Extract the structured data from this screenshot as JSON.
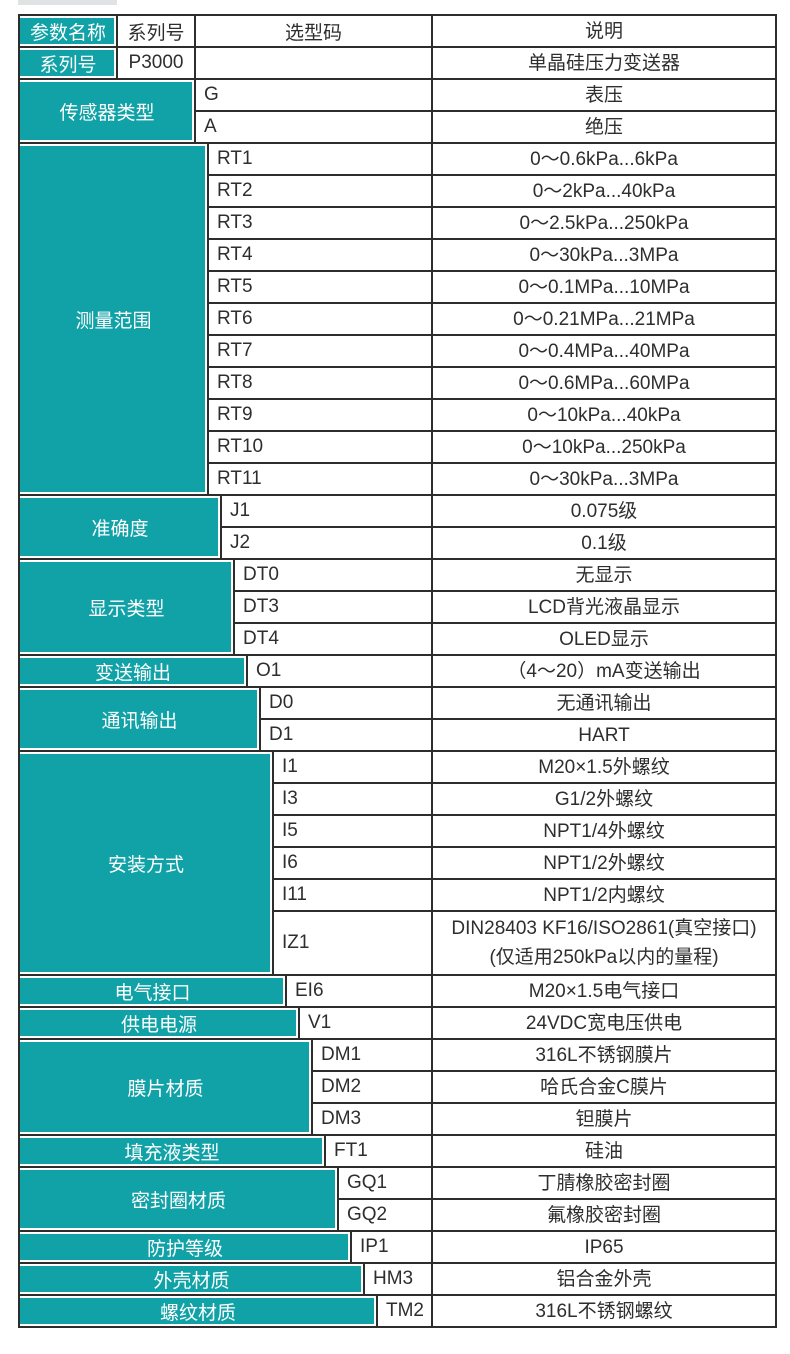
{
  "table": {
    "colors": {
      "teal": "#10a2a7",
      "border": "#2d2d2d",
      "text_dark": "#2e2e2e",
      "teal_text": "#ffffff"
    },
    "header": {
      "param": "参数名称",
      "series": "系列号",
      "code": "选型码",
      "desc": "说明"
    },
    "series_row": {
      "name": "系列号",
      "code": "P3000",
      "desc": "单晶硅压力变送器"
    },
    "groups": [
      {
        "name": "传感器类型",
        "rows": [
          {
            "code": "G",
            "desc": [
              "表压"
            ]
          },
          {
            "code": "A",
            "desc": [
              "绝压"
            ]
          }
        ]
      },
      {
        "name": "测量范围",
        "rows": [
          {
            "code": "RT1",
            "desc": [
              "0～0.6kPa...6kPa"
            ]
          },
          {
            "code": "RT2",
            "desc": [
              "0～2kPa...40kPa"
            ]
          },
          {
            "code": "RT3",
            "desc": [
              "0～2.5kPa...250kPa"
            ]
          },
          {
            "code": "RT4",
            "desc": [
              "0～30kPa...3MPa"
            ]
          },
          {
            "code": "RT5",
            "desc": [
              "0～0.1MPa...10MPa"
            ]
          },
          {
            "code": "RT6",
            "desc": [
              "0～0.21MPa...21MPa"
            ]
          },
          {
            "code": "RT7",
            "desc": [
              "0～0.4MPa...40MPa"
            ]
          },
          {
            "code": "RT8",
            "desc": [
              "0～0.6MPa...60MPa"
            ]
          },
          {
            "code": "RT9",
            "desc": [
              "0～10kPa...40kPa"
            ]
          },
          {
            "code": "RT10",
            "desc": [
              "0～10kPa...250kPa"
            ]
          },
          {
            "code": "RT11",
            "desc": [
              "0～30kPa...3MPa"
            ]
          }
        ]
      },
      {
        "name": "准确度",
        "rows": [
          {
            "code": "J1",
            "desc": [
              "0.075级"
            ]
          },
          {
            "code": "J2",
            "desc": [
              "0.1级"
            ]
          }
        ]
      },
      {
        "name": "显示类型",
        "rows": [
          {
            "code": "DT0",
            "desc": [
              "无显示"
            ]
          },
          {
            "code": "DT3",
            "desc": [
              "LCD背光液晶显示"
            ]
          },
          {
            "code": "DT4",
            "desc": [
              "OLED显示"
            ]
          }
        ]
      },
      {
        "name": "变送输出",
        "rows": [
          {
            "code": "O1",
            "desc": [
              "（4～20）mA变送输出"
            ]
          }
        ]
      },
      {
        "name": "通讯输出",
        "rows": [
          {
            "code": "D0",
            "desc": [
              "无通讯输出"
            ]
          },
          {
            "code": "D1",
            "desc": [
              "HART"
            ]
          }
        ]
      },
      {
        "name": "安装方式",
        "rows": [
          {
            "code": "I1",
            "desc": [
              "M20×1.5外螺纹"
            ]
          },
          {
            "code": "I3",
            "desc": [
              "G1/2外螺纹"
            ]
          },
          {
            "code": "I5",
            "desc": [
              "NPT1/4外螺纹"
            ]
          },
          {
            "code": "I6",
            "desc": [
              "NPT1/2外螺纹"
            ]
          },
          {
            "code": "I11",
            "desc": [
              "NPT1/2内螺纹"
            ]
          },
          {
            "code": "IZ1",
            "desc": [
              "DIN28403 KF16/ISO2861(真空接口)",
              "(仅适用250kPa以内的量程)"
            ]
          }
        ]
      },
      {
        "name": "电气接口",
        "rows": [
          {
            "code": "EI6",
            "desc": [
              "M20×1.5电气接口"
            ]
          }
        ]
      },
      {
        "name": "供电电源",
        "rows": [
          {
            "code": "V1",
            "desc": [
              "24VDC宽电压供电"
            ]
          }
        ]
      },
      {
        "name": "膜片材质",
        "rows": [
          {
            "code": "DM1",
            "desc": [
              "316L不锈钢膜片"
            ]
          },
          {
            "code": "DM2",
            "desc": [
              "哈氏合金C膜片"
            ]
          },
          {
            "code": "DM3",
            "desc": [
              "钽膜片"
            ]
          }
        ]
      },
      {
        "name": "填充液类型",
        "rows": [
          {
            "code": "FT1",
            "desc": [
              "硅油"
            ]
          }
        ]
      },
      {
        "name": "密封圈材质",
        "rows": [
          {
            "code": "GQ1",
            "desc": [
              "丁腈橡胶密封圈"
            ]
          },
          {
            "code": "GQ2",
            "desc": [
              "氟橡胶密封圈"
            ]
          }
        ]
      },
      {
        "name": "防护等级",
        "rows": [
          {
            "code": "IP1",
            "desc": [
              "IP65"
            ]
          }
        ]
      },
      {
        "name": "外壳材质",
        "rows": [
          {
            "code": "HM3",
            "desc": [
              "铝合金外壳"
            ]
          }
        ]
      },
      {
        "name": "螺纹材质",
        "rows": [
          {
            "code": "TM2",
            "desc": [
              "316L不锈钢螺纹"
            ]
          }
        ]
      }
    ]
  }
}
